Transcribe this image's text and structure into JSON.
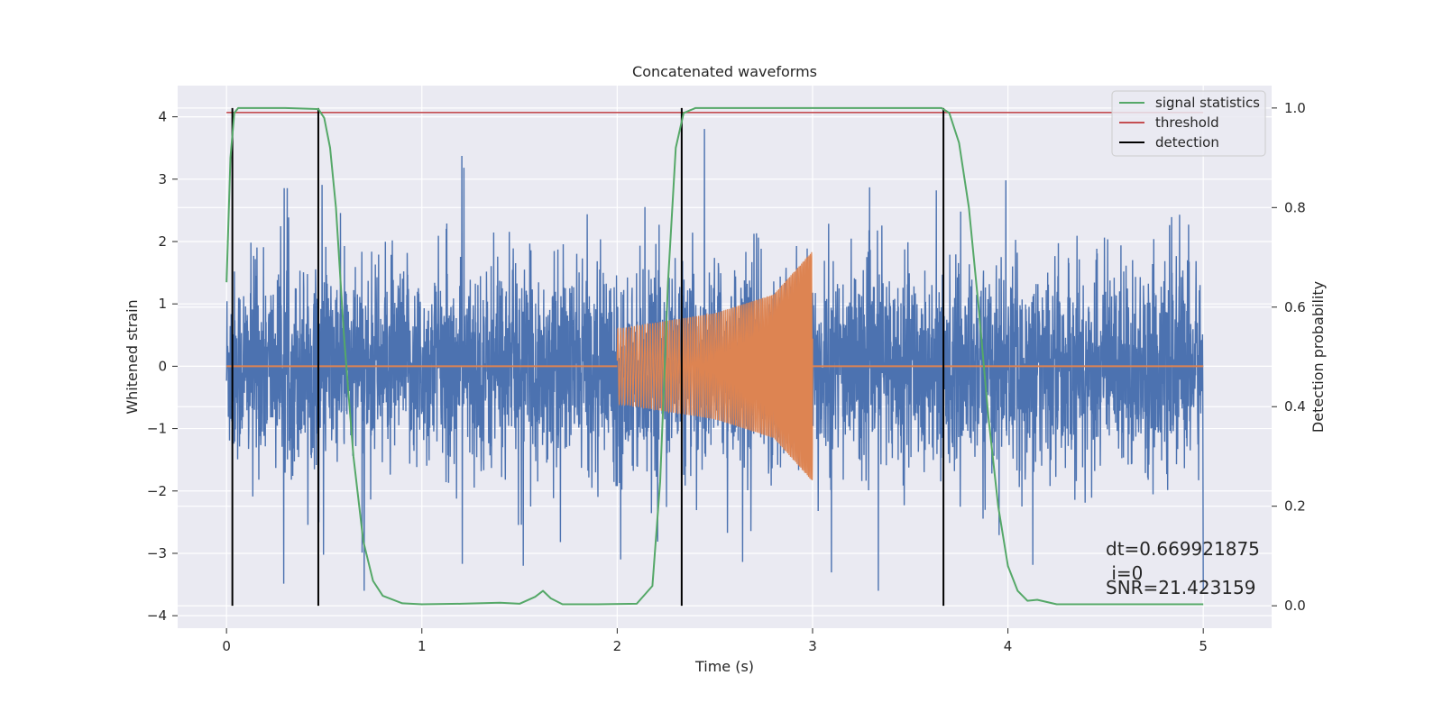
{
  "chart_data": {
    "type": "line",
    "title": "Concatenated waveforms",
    "xlabel": "Time (s)",
    "ylabel": "Whitened strain",
    "y2label": "Detection probability",
    "xlim": [
      -0.25,
      5.35
    ],
    "ylim": [
      -4.2,
      4.5
    ],
    "y2lim": [
      -0.045,
      1.045
    ],
    "xticks": [
      0,
      1,
      2,
      3,
      4,
      5
    ],
    "yticks": [
      -4,
      -3,
      -2,
      -1,
      0,
      1,
      2,
      3,
      4
    ],
    "y2ticks": [
      0.0,
      0.2,
      0.4,
      0.6,
      0.8,
      1.0
    ],
    "y2ticklabels": [
      "0.0",
      "0.2",
      "0.4",
      "0.6",
      "0.8",
      "1.0"
    ],
    "grid": true,
    "legend_position": "top-right",
    "colors": {
      "strain": "#4c72b0",
      "injection": "#dd8452",
      "statistic": "#55a868",
      "threshold": "#c44e52",
      "detection": "#000000",
      "plot_background": "#eaeaf2",
      "grid": "#ffffff"
    },
    "series": [
      {
        "name": "whitened strain",
        "axis": "left",
        "x_range": [
          0,
          5
        ],
        "amplitude": "approx ±1 typical, peaks to about ±3.5"
      },
      {
        "name": "injected chirp",
        "axis": "left",
        "x_range": [
          2.0,
          3.0
        ],
        "envelope": [
          [
            2.0,
            0.6
          ],
          [
            2.5,
            0.85
          ],
          [
            2.8,
            1.15
          ],
          [
            3.0,
            1.85
          ]
        ],
        "outside_value": 0
      },
      {
        "name": "signal statistics",
        "axis": "right",
        "x": [
          0,
          0.02,
          0.04,
          0.06,
          0.1,
          0.3,
          0.47,
          0.5,
          0.53,
          0.56,
          0.6,
          0.65,
          0.7,
          0.75,
          0.8,
          0.9,
          1.0,
          1.2,
          1.4,
          1.5,
          1.58,
          1.62,
          1.66,
          1.72,
          1.9,
          2.1,
          2.18,
          2.22,
          2.26,
          2.3,
          2.34,
          2.4,
          2.6,
          3.66,
          3.7,
          3.75,
          3.8,
          3.85,
          3.9,
          3.95,
          4.0,
          4.05,
          4.1,
          4.15,
          4.25,
          5.0
        ],
        "y": [
          0.65,
          0.9,
          0.99,
          1.0,
          1.0,
          1.0,
          0.998,
          0.98,
          0.92,
          0.8,
          0.55,
          0.3,
          0.13,
          0.05,
          0.02,
          0.005,
          0.003,
          0.004,
          0.006,
          0.004,
          0.018,
          0.03,
          0.015,
          0.003,
          0.003,
          0.004,
          0.04,
          0.25,
          0.65,
          0.92,
          0.99,
          1.0,
          1.0,
          1.0,
          0.99,
          0.93,
          0.8,
          0.6,
          0.38,
          0.2,
          0.08,
          0.03,
          0.01,
          0.012,
          0.003,
          0.003
        ]
      },
      {
        "name": "threshold",
        "axis": "right",
        "x": [
          0,
          5
        ],
        "y": [
          0.991,
          0.991
        ]
      },
      {
        "name": "detection",
        "axis": "right",
        "x_positions": [
          0.03,
          0.47,
          2.33,
          3.67
        ],
        "y_range": [
          0,
          1
        ]
      }
    ],
    "legend": [
      "signal statistics",
      "threshold",
      "detection"
    ],
    "annotations": {
      "dt": "dt=0.669921875",
      "i": " i=0",
      "snr": "SNR=21.423159"
    }
  }
}
